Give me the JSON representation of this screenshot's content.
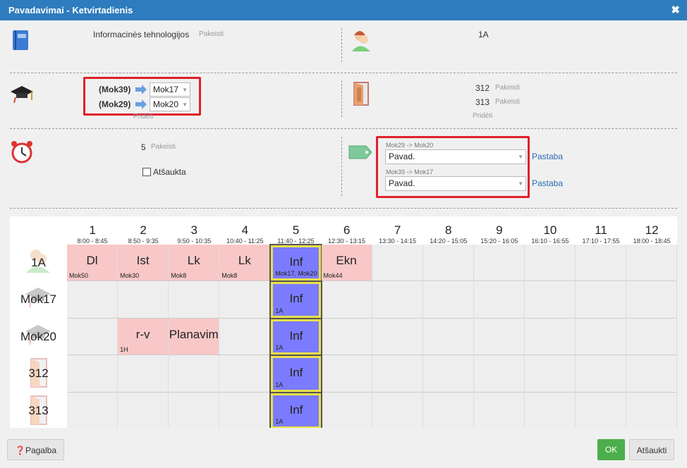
{
  "title": "Pavadavimai - Ketvirtadienis",
  "close": "✖",
  "subject": {
    "name": "Informacinės tehnologijos",
    "changed": "Pakeisti"
  },
  "class_name": "1A",
  "teachers": [
    {
      "from": "(Mok39)",
      "to": "Mok17"
    },
    {
      "from": "(Mok29)",
      "to": "Mok20"
    }
  ],
  "teachers_add": "Pridėti",
  "rooms": [
    {
      "name": "312",
      "changed": "Pakeisti"
    },
    {
      "name": "313",
      "changed": "Pakeisti"
    }
  ],
  "rooms_add": "Pridėti",
  "period": {
    "value": "5",
    "changed": "Pakeisti"
  },
  "cancelled_label": "Atšaukta",
  "substitutions": [
    {
      "label": "Mok29 -> Mok20",
      "value": "Pavad.",
      "note": "Pastaba"
    },
    {
      "label": "Mok39 -> Mok17",
      "value": "Pavad.",
      "note": "Pastaba"
    }
  ],
  "periods": [
    {
      "n": "1",
      "t": "8:00 - 8:45"
    },
    {
      "n": "2",
      "t": "8:50 - 9:35"
    },
    {
      "n": "3",
      "t": "9:50 - 10:35"
    },
    {
      "n": "4",
      "t": "10:40 - 11:25"
    },
    {
      "n": "5",
      "t": "11:40 - 12:25"
    },
    {
      "n": "6",
      "t": "12:30 - 13:15"
    },
    {
      "n": "7",
      "t": "13:30 - 14:15"
    },
    {
      "n": "8",
      "t": "14:20 - 15:05"
    },
    {
      "n": "9",
      "t": "15:20 - 16:05"
    },
    {
      "n": "10",
      "t": "16:10 - 16:55"
    },
    {
      "n": "11",
      "t": "17:10 - 17:55"
    },
    {
      "n": "12",
      "t": "18:00 - 18:45"
    }
  ],
  "rows": [
    {
      "label": "1A",
      "icon": "class-icon",
      "lessons": [
        {
          "p": 1,
          "name": "Dl",
          "sub": "Mok50"
        },
        {
          "p": 2,
          "name": "Ist",
          "sub": "Mok30"
        },
        {
          "p": 3,
          "name": "Lk",
          "sub": "Mok8"
        },
        {
          "p": 4,
          "name": "Lk",
          "sub": "Mok8"
        },
        {
          "p": 5,
          "name": "Inf",
          "sub": "Mok17, Mok20",
          "hl": true
        },
        {
          "p": 6,
          "name": "Ekn",
          "sub": "Mok44"
        }
      ]
    },
    {
      "label": "Mok17",
      "icon": "teacher-icon",
      "lessons": [
        {
          "p": 5,
          "name": "Inf",
          "sub": "1A",
          "hl": true
        }
      ]
    },
    {
      "label": "Mok20",
      "icon": "teacher-icon",
      "lessons": [
        {
          "p": 2,
          "name": "r-v",
          "sub": "1H"
        },
        {
          "p": 3,
          "name": "Planavim",
          "sub": ""
        },
        {
          "p": 5,
          "name": "Inf",
          "sub": "1A",
          "hl": true
        }
      ]
    },
    {
      "label": "312",
      "icon": "door-icon",
      "lessons": [
        {
          "p": 5,
          "name": "Inf",
          "sub": "1A",
          "hl": true
        }
      ]
    },
    {
      "label": "313",
      "icon": "door-icon",
      "lessons": [
        {
          "p": 5,
          "name": "Inf",
          "sub": "1A",
          "hl": true
        }
      ]
    }
  ],
  "buttons": {
    "help": "Pagalba",
    "ok": "OK",
    "cancel": "Atšaukti"
  },
  "colors": {
    "title": "#2e7cbd",
    "lesson": "#f8c8c8",
    "highlight": "#7b7bff",
    "ok": "#4cae4c"
  }
}
